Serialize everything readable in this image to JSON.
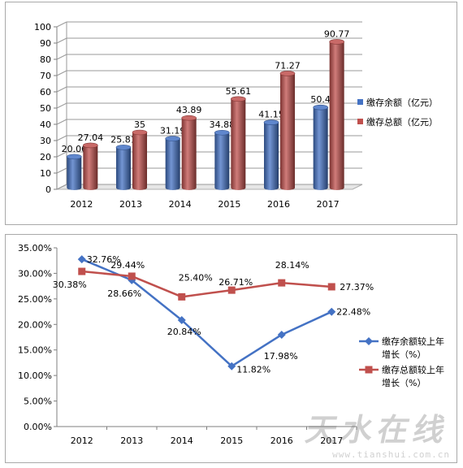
{
  "chart_data": [
    {
      "type": "bar",
      "categories": [
        "2012",
        "2013",
        "2014",
        "2015",
        "2016",
        "2017"
      ],
      "series": [
        {
          "name": "缴存余额（亿元）",
          "color": "#4472c4",
          "values": [
            20.06,
            25.81,
            31.19,
            34.88,
            41.15,
            50.4
          ],
          "labels": [
            "20.06",
            "25.81",
            "31.19",
            "34.88",
            "41.15",
            "50.4"
          ]
        },
        {
          "name": "缴存总额（亿元）",
          "color": "#c0504d",
          "values": [
            27.04,
            35,
            43.89,
            55.61,
            71.27,
            90.77
          ],
          "labels": [
            "27.04",
            "35",
            "43.89",
            "55.61",
            "71.27",
            "90.77"
          ]
        }
      ],
      "ylim": [
        0,
        100
      ],
      "yticks": [
        "0",
        "10",
        "20",
        "30",
        "40",
        "50",
        "60",
        "70",
        "80",
        "90",
        "100"
      ],
      "grid": true,
      "legend": "right",
      "style": "3d-cylinder"
    },
    {
      "type": "line",
      "categories": [
        "2012",
        "2013",
        "2014",
        "2015",
        "2016",
        "2017"
      ],
      "series": [
        {
          "name": "缴存余额较上年增长（%）",
          "color": "#4472c4",
          "marker": "diamond",
          "values": [
            32.76,
            28.66,
            20.84,
            11.82,
            17.98,
            22.48
          ],
          "labels": [
            "32.76%",
            "28.66%",
            "20.84%",
            "11.82%",
            "17.98%",
            "22.48%"
          ]
        },
        {
          "name": "缴存总额较上年增长（%）",
          "color": "#c0504d",
          "marker": "square",
          "values": [
            30.38,
            29.44,
            25.4,
            26.71,
            28.14,
            27.37
          ],
          "labels": [
            "30.38%",
            "29.44%",
            "25.40%",
            "26.71%",
            "28.14%",
            "27.37%"
          ]
        }
      ],
      "ylim": [
        0,
        35
      ],
      "yticks": [
        "0.00%",
        "5.00%",
        "10.00%",
        "15.00%",
        "20.00%",
        "25.00%",
        "30.00%",
        "35.00%"
      ],
      "grid": false,
      "legend": "right"
    }
  ],
  "legend_top": [
    "缴存余额（亿元）",
    "缴存总额（亿元）"
  ],
  "legend_bottom": [
    {
      "line1": "缴存余额较上年",
      "line2": "增长（%）"
    },
    {
      "line1": "缴存总额较上年",
      "line2": "增长（%）"
    }
  ],
  "watermark": {
    "main": "天水在线",
    "url": "www.tianshui.com.cn"
  }
}
